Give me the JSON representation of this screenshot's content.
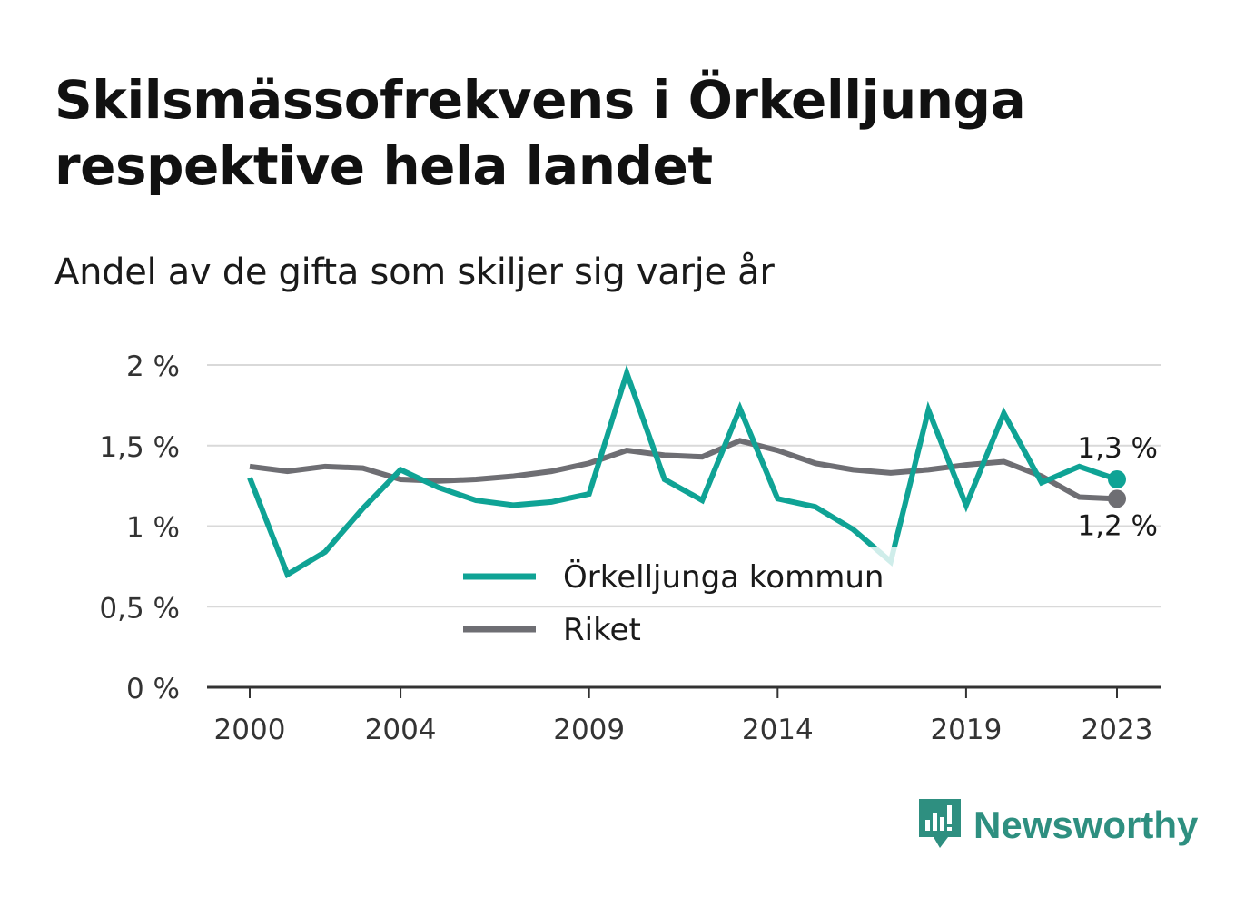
{
  "title_line1": "Skilsmässofrekvens i Örkelljunga",
  "title_line2": "respektive hela landet",
  "subtitle": "Andel av de gifta som skiljer sig varje år",
  "brand": "Newsworthy",
  "colors": {
    "orkelljunga": "#0fa395",
    "riket": "#6e6e73",
    "grid": "#d9d9d9",
    "axis": "#333333",
    "brand": "#2e8f80"
  },
  "chart_data": {
    "type": "line",
    "x": [
      2000,
      2001,
      2002,
      2003,
      2004,
      2005,
      2006,
      2007,
      2008,
      2009,
      2010,
      2011,
      2012,
      2013,
      2014,
      2015,
      2016,
      2017,
      2018,
      2019,
      2020,
      2021,
      2022,
      2023
    ],
    "x_ticks": [
      2000,
      2004,
      2009,
      2014,
      2019,
      2023
    ],
    "x_tick_labels": [
      "2000",
      "2004",
      "2009",
      "2014",
      "2019",
      "2023"
    ],
    "y_ticks": [
      0,
      0.5,
      1,
      1.5,
      2
    ],
    "y_tick_labels": [
      "0 %",
      "0,5 %",
      "1 %",
      "1,5 %",
      "2 %"
    ],
    "ylim": [
      0,
      2
    ],
    "grid": true,
    "legend_position": "bottom-center",
    "series": [
      {
        "name": "Örkelljunga kommun",
        "color": "#0fa395",
        "values": [
          1.3,
          0.7,
          0.84,
          1.11,
          1.35,
          1.24,
          1.16,
          1.13,
          1.15,
          1.2,
          1.95,
          1.29,
          1.16,
          1.73,
          1.17,
          1.12,
          0.98,
          0.78,
          1.72,
          1.13,
          1.7,
          1.27,
          1.37,
          1.29
        ],
        "end_label": "1,3 %"
      },
      {
        "name": "Riket",
        "color": "#6e6e73",
        "values": [
          1.37,
          1.34,
          1.37,
          1.36,
          1.29,
          1.28,
          1.29,
          1.31,
          1.34,
          1.39,
          1.47,
          1.44,
          1.43,
          1.53,
          1.47,
          1.39,
          1.35,
          1.33,
          1.35,
          1.38,
          1.4,
          1.31,
          1.18,
          1.17
        ],
        "end_label": "1,2 %"
      }
    ]
  }
}
